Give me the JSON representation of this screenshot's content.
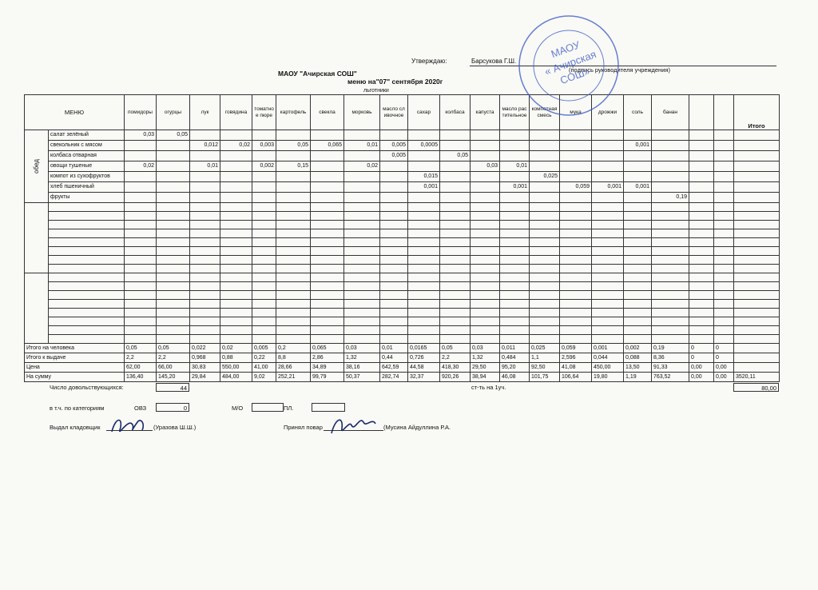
{
  "header": {
    "approve_label": "Утверждаю:",
    "approver": "Барсукова Г.Ш.",
    "signature_note": "(подпись руководителя учреждения)",
    "org": "МАОУ \"Ачирская СОШ\"",
    "menu_date": "меню на\"07\" сентября 2020г",
    "category": "льготники"
  },
  "stamp": {
    "lines": [
      "МАОУ",
      "« Ачирская",
      "СОШ»"
    ]
  },
  "table": {
    "menu_label": "МЕНЮ",
    "side_label": "обед",
    "total_label": "Итого",
    "columns": [
      "помидоры",
      "огурцы",
      "лук",
      "говядина",
      "томатное пюре",
      "картофель",
      "свекла",
      "морковь",
      "масло сливочное",
      "сахар",
      "колбаса",
      "капуста",
      "масло растительное",
      "компотная смесь",
      "мука",
      "дрожжи",
      "соль",
      "банан",
      null,
      null
    ],
    "dishes": [
      {
        "name": "салат зелёный",
        "values": [
          "0,03",
          "0,05",
          null,
          null,
          null,
          null,
          null,
          null,
          null,
          null,
          null,
          null,
          null,
          null,
          null,
          null,
          null,
          null,
          null,
          null
        ]
      },
      {
        "name": "свекольник с мясом",
        "values": [
          null,
          null,
          "0,012",
          "0,02",
          "0,003",
          "0,05",
          "0,065",
          "0,01",
          "0,005",
          "0,0005",
          null,
          null,
          null,
          null,
          null,
          null,
          "0,001",
          null,
          null,
          null
        ]
      },
      {
        "name": "колбаса отварная",
        "values": [
          null,
          null,
          null,
          null,
          null,
          null,
          null,
          null,
          "0,005",
          null,
          "0,05",
          null,
          null,
          null,
          null,
          null,
          null,
          null,
          null,
          null
        ]
      },
      {
        "name": "овощи тушеные",
        "values": [
          "0,02",
          null,
          "0,01",
          null,
          "0,002",
          "0,15",
          null,
          "0,02",
          null,
          null,
          null,
          "0,03",
          "0,01",
          null,
          null,
          null,
          null,
          null,
          null,
          null
        ]
      },
      {
        "name": "компот из сухофруктов",
        "values": [
          null,
          null,
          null,
          null,
          null,
          null,
          null,
          null,
          null,
          "0,015",
          null,
          null,
          null,
          "0,025",
          null,
          null,
          null,
          null,
          null,
          null
        ]
      },
      {
        "name": "хлеб пшеничный",
        "values": [
          null,
          null,
          null,
          null,
          null,
          null,
          null,
          null,
          null,
          "0,001",
          null,
          null,
          "0,001",
          null,
          "0,059",
          "0,001",
          "0,001",
          null,
          null,
          null
        ]
      },
      {
        "name": "фрукты",
        "values": [
          null,
          null,
          null,
          null,
          null,
          null,
          null,
          null,
          null,
          null,
          null,
          null,
          null,
          null,
          null,
          null,
          null,
          "0,19",
          null,
          null
        ]
      }
    ],
    "summary": [
      {
        "label": "Итого на человека",
        "values": [
          "0,05",
          "0,05",
          "0,022",
          "0,02",
          "0,005",
          "0,2",
          "0,065",
          "0,03",
          "0,01",
          "0,0165",
          "0,05",
          "0,03",
          "0,011",
          "0,025",
          "0,059",
          "0,001",
          "0,002",
          "0,19",
          "0",
          "0"
        ]
      },
      {
        "label": "Итого к выдаче",
        "values": [
          "2,2",
          "2,2",
          "0,968",
          "0,88",
          "0,22",
          "8,8",
          "2,86",
          "1,32",
          "0,44",
          "0,726",
          "2,2",
          "1,32",
          "0,484",
          "1,1",
          "2,596",
          "0,044",
          "0,088",
          "8,36",
          "0",
          "0"
        ]
      },
      {
        "label": "Цена",
        "values": [
          "62,00",
          "66,00",
          "30,83",
          "550,00",
          "41,00",
          "28,66",
          "34,89",
          "38,16",
          "642,59",
          "44,58",
          "418,30",
          "29,50",
          "95,20",
          "92,50",
          "41,08",
          "450,00",
          "13,50",
          "91,33",
          "0,00",
          "0,00"
        ]
      },
      {
        "label": "На сумму",
        "values": [
          "136,40",
          "145,20",
          "29,84",
          "484,00",
          "9,02",
          "252,21",
          "99,79",
          "50,37",
          "282,74",
          "32,37",
          "920,26",
          "38,94",
          "46,08",
          "101,75",
          "106,64",
          "19,80",
          "1,19",
          "763,52",
          "0,00",
          "0,00"
        ],
        "total": "3520,11"
      }
    ]
  },
  "footer": {
    "diners_label": "Число довольствующихся:",
    "diners": "44",
    "cost_label": "ст-ть на 1уч.",
    "cost": "80,00",
    "categories_label": "в т.ч. по категориям",
    "ovz_label": "ОВЗ",
    "ovz": "0",
    "mo_label": "М/О",
    "pl_label": "ПЛ.",
    "issued_label": "Выдал кладовщик",
    "issued_name": "(Уразова Ш.Ш.)",
    "received_label": "Принял повар",
    "received_name": "(Мусина Айдуллина Р.А."
  }
}
